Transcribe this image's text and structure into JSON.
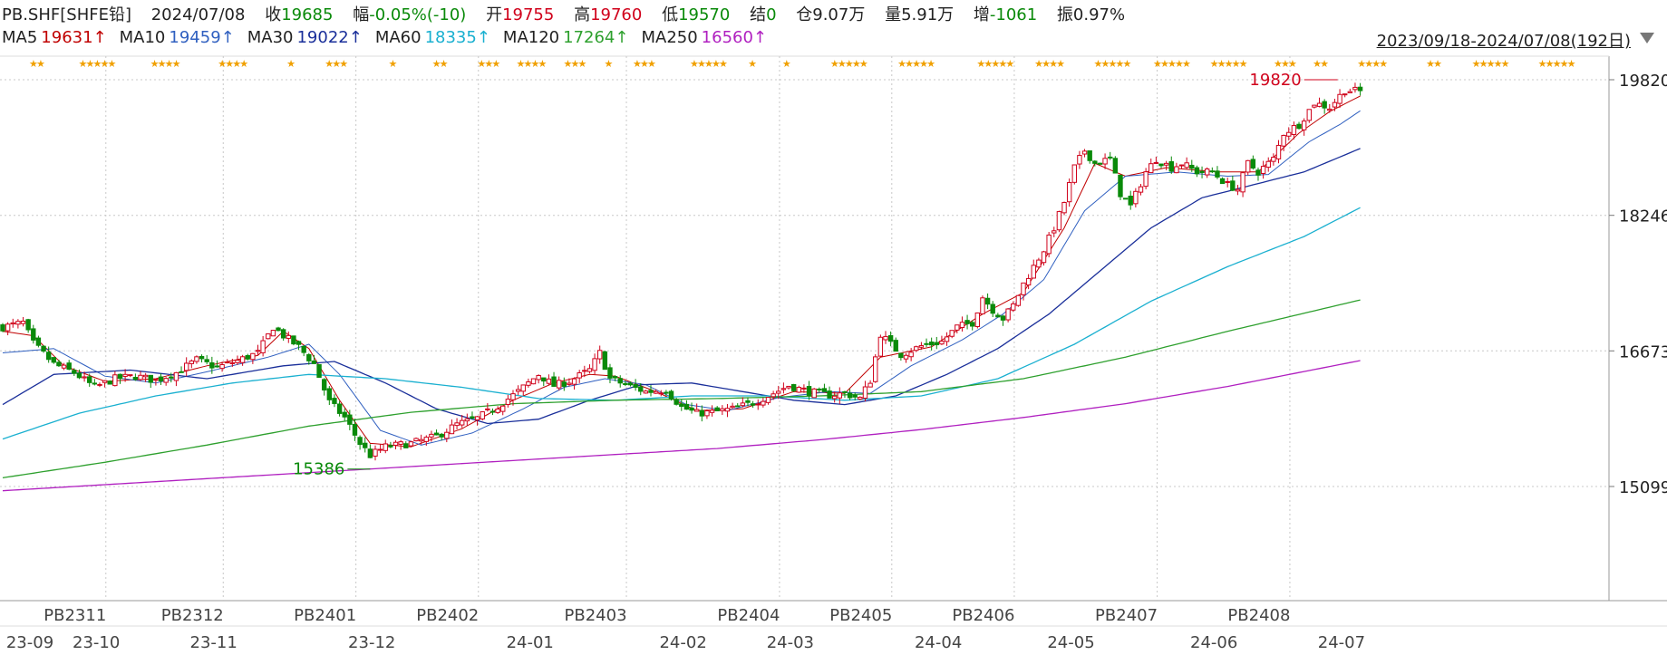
{
  "header": {
    "symbol": "PB.SHF[SHFE铅]",
    "date": "2024/07/08",
    "close_label": "收",
    "close_value": "19685",
    "change_label": "幅",
    "change_value": "-0.05%(-10)",
    "open_label": "开",
    "open_value": "19755",
    "high_label": "高",
    "high_value": "19760",
    "low_label": "低",
    "low_value": "19570",
    "settle_label": "结",
    "settle_value": "0",
    "oi_label": "仓",
    "oi_value": "9.07万",
    "volume_label": "量",
    "volume_value": "5.91万",
    "oi_change_label": "增",
    "oi_change_value": "-1061",
    "amplitude_label": "振",
    "amplitude_value": "0.97%"
  },
  "ma_row": [
    {
      "name": "MA5",
      "value": "19631↑",
      "color": "#c00000"
    },
    {
      "name": "MA10",
      "value": "19459↑",
      "color": "#3060c0"
    },
    {
      "name": "MA30",
      "value": "19022↑",
      "color": "#1a2f9a"
    },
    {
      "name": "MA60",
      "value": "18335↑",
      "color": "#1ab0d0"
    },
    {
      "name": "MA120",
      "value": "17264↑",
      "color": "#2ea02e"
    },
    {
      "name": "MA250",
      "value": "16560↑",
      "color": "#b020c0"
    }
  ],
  "date_range": "2023/09/18-2024/07/08(192日)",
  "colors": {
    "up": "#d0021b",
    "down": "#0a8a0a",
    "grid": "#c8c8c8",
    "star": "#f0a000"
  },
  "chart_data": {
    "type": "candlestick",
    "y_ticks": [
      "19820",
      "18246",
      "16673",
      "15099"
    ],
    "y_tick_values": [
      19820,
      18246,
      16673,
      15099
    ],
    "ylim": [
      14830,
      20100
    ],
    "period_labels": [
      "PB2311",
      "PB2312",
      "PB2401",
      "PB2402",
      "PB2403",
      "PB2404",
      "PB2405",
      "PB2406",
      "PB2407",
      "PB2408"
    ],
    "period_label_days": [
      6,
      29,
      55,
      79,
      108,
      138,
      160,
      184,
      212,
      238
    ],
    "date_labels": [
      "23-09",
      "23-10",
      "23-11",
      "23-12",
      "24-01",
      "24-02",
      "24-03",
      "24-04",
      "24-05",
      "24-06",
      "24-07"
    ],
    "date_label_days": [
      0,
      13,
      36,
      67,
      98,
      128,
      149,
      178,
      204,
      232,
      257
    ],
    "n_days": 270,
    "annotations": [
      {
        "text": "15386",
        "day": 72,
        "value": 15386
      },
      {
        "text": "19820",
        "day": 263,
        "value": 19820
      }
    ],
    "close_keypoints": [
      [
        0,
        16950
      ],
      [
        4,
        17000
      ],
      [
        6,
        16760
      ],
      [
        10,
        16520
      ],
      [
        14,
        16420
      ],
      [
        18,
        16250
      ],
      [
        22,
        16350
      ],
      [
        26,
        16380
      ],
      [
        30,
        16330
      ],
      [
        34,
        16420
      ],
      [
        38,
        16570
      ],
      [
        42,
        16480
      ],
      [
        46,
        16560
      ],
      [
        50,
        16650
      ],
      [
        53,
        16950
      ],
      [
        55,
        16850
      ],
      [
        58,
        16720
      ],
      [
        61,
        16520
      ],
      [
        64,
        16080
      ],
      [
        67,
        15900
      ],
      [
        70,
        15600
      ],
      [
        72,
        15460
      ],
      [
        75,
        15560
      ],
      [
        80,
        15600
      ],
      [
        85,
        15680
      ],
      [
        89,
        15820
      ],
      [
        93,
        15890
      ],
      [
        97,
        16030
      ],
      [
        101,
        16200
      ],
      [
        105,
        16400
      ],
      [
        108,
        16270
      ],
      [
        111,
        16320
      ],
      [
        115,
        16450
      ],
      [
        117,
        16650
      ],
      [
        119,
        16350
      ],
      [
        122,
        16280
      ],
      [
        126,
        16200
      ],
      [
        130,
        16220
      ],
      [
        133,
        16020
      ],
      [
        136,
        15950
      ],
      [
        139,
        15960
      ],
      [
        143,
        16000
      ],
      [
        147,
        16070
      ],
      [
        150,
        16150
      ],
      [
        154,
        16270
      ],
      [
        158,
        16200
      ],
      [
        162,
        16160
      ],
      [
        165,
        16180
      ],
      [
        168,
        16120
      ],
      [
        170,
        16330
      ],
      [
        172,
        16870
      ],
      [
        176,
        16630
      ],
      [
        180,
        16730
      ],
      [
        184,
        16780
      ],
      [
        187,
        16950
      ],
      [
        190,
        17000
      ],
      [
        192,
        17300
      ],
      [
        194,
        17150
      ],
      [
        196,
        17050
      ],
      [
        198,
        17200
      ],
      [
        200,
        17450
      ],
      [
        202,
        17650
      ],
      [
        204,
        17850
      ],
      [
        206,
        18100
      ],
      [
        208,
        18400
      ],
      [
        210,
        18800
      ],
      [
        212,
        19000
      ],
      [
        214,
        18850
      ],
      [
        217,
        18900
      ],
      [
        219,
        18500
      ],
      [
        221,
        18350
      ],
      [
        224,
        18750
      ],
      [
        226,
        18900
      ],
      [
        229,
        18800
      ],
      [
        231,
        18850
      ],
      [
        234,
        18750
      ],
      [
        237,
        18750
      ],
      [
        240,
        18600
      ],
      [
        242,
        18550
      ],
      [
        244,
        18850
      ],
      [
        246,
        18750
      ],
      [
        249,
        18900
      ],
      [
        251,
        19200
      ],
      [
        254,
        19300
      ],
      [
        257,
        19550
      ],
      [
        260,
        19500
      ],
      [
        263,
        19700
      ],
      [
        266,
        19685
      ]
    ],
    "ma_series": [
      {
        "name": "MA5",
        "color": "#c00000",
        "points": [
          [
            0,
            16900
          ],
          [
            6,
            16850
          ],
          [
            12,
            16500
          ],
          [
            20,
            16320
          ],
          [
            30,
            16350
          ],
          [
            40,
            16500
          ],
          [
            50,
            16620
          ],
          [
            55,
            16900
          ],
          [
            60,
            16700
          ],
          [
            66,
            16100
          ],
          [
            72,
            15600
          ],
          [
            80,
            15560
          ],
          [
            90,
            15770
          ],
          [
            100,
            16100
          ],
          [
            108,
            16300
          ],
          [
            115,
            16400
          ],
          [
            120,
            16380
          ],
          [
            128,
            16200
          ],
          [
            136,
            15980
          ],
          [
            145,
            16000
          ],
          [
            155,
            16200
          ],
          [
            165,
            16180
          ],
          [
            172,
            16600
          ],
          [
            182,
            16720
          ],
          [
            192,
            17100
          ],
          [
            200,
            17350
          ],
          [
            208,
            18100
          ],
          [
            214,
            18850
          ],
          [
            220,
            18700
          ],
          [
            228,
            18800
          ],
          [
            238,
            18750
          ],
          [
            246,
            18750
          ],
          [
            254,
            19200
          ],
          [
            260,
            19450
          ],
          [
            266,
            19631
          ]
        ]
      },
      {
        "name": "MA10",
        "color": "#3060c0",
        "points": [
          [
            0,
            16650
          ],
          [
            10,
            16700
          ],
          [
            20,
            16380
          ],
          [
            30,
            16300
          ],
          [
            40,
            16430
          ],
          [
            52,
            16600
          ],
          [
            60,
            16750
          ],
          [
            66,
            16400
          ],
          [
            74,
            15750
          ],
          [
            82,
            15580
          ],
          [
            92,
            15720
          ],
          [
            102,
            16000
          ],
          [
            110,
            16250
          ],
          [
            118,
            16350
          ],
          [
            126,
            16280
          ],
          [
            134,
            16050
          ],
          [
            142,
            15980
          ],
          [
            152,
            16130
          ],
          [
            162,
            16200
          ],
          [
            170,
            16180
          ],
          [
            178,
            16500
          ],
          [
            188,
            16800
          ],
          [
            196,
            17100
          ],
          [
            204,
            17500
          ],
          [
            212,
            18300
          ],
          [
            220,
            18700
          ],
          [
            230,
            18750
          ],
          [
            240,
            18700
          ],
          [
            248,
            18720
          ],
          [
            256,
            19100
          ],
          [
            262,
            19300
          ],
          [
            266,
            19459
          ]
        ]
      },
      {
        "name": "MA30",
        "color": "#1a2f9a",
        "points": [
          [
            0,
            16050
          ],
          [
            10,
            16400
          ],
          [
            25,
            16450
          ],
          [
            40,
            16350
          ],
          [
            55,
            16500
          ],
          [
            65,
            16550
          ],
          [
            75,
            16300
          ],
          [
            85,
            16000
          ],
          [
            95,
            15830
          ],
          [
            105,
            15880
          ],
          [
            115,
            16100
          ],
          [
            125,
            16280
          ],
          [
            135,
            16300
          ],
          [
            145,
            16200
          ],
          [
            155,
            16100
          ],
          [
            165,
            16050
          ],
          [
            175,
            16150
          ],
          [
            185,
            16400
          ],
          [
            195,
            16700
          ],
          [
            205,
            17100
          ],
          [
            215,
            17600
          ],
          [
            225,
            18100
          ],
          [
            235,
            18450
          ],
          [
            245,
            18600
          ],
          [
            255,
            18750
          ],
          [
            266,
            19022
          ]
        ]
      },
      {
        "name": "MA60",
        "color": "#1ab0d0",
        "points": [
          [
            0,
            15650
          ],
          [
            15,
            15950
          ],
          [
            30,
            16150
          ],
          [
            45,
            16300
          ],
          [
            60,
            16400
          ],
          [
            75,
            16350
          ],
          [
            90,
            16250
          ],
          [
            105,
            16120
          ],
          [
            120,
            16100
          ],
          [
            135,
            16150
          ],
          [
            150,
            16150
          ],
          [
            165,
            16100
          ],
          [
            180,
            16150
          ],
          [
            195,
            16350
          ],
          [
            210,
            16750
          ],
          [
            225,
            17250
          ],
          [
            240,
            17650
          ],
          [
            255,
            18000
          ],
          [
            266,
            18335
          ]
        ]
      },
      {
        "name": "MA120",
        "color": "#2ea02e",
        "points": [
          [
            0,
            15200
          ],
          [
            20,
            15380
          ],
          [
            40,
            15580
          ],
          [
            60,
            15800
          ],
          [
            80,
            15960
          ],
          [
            100,
            16060
          ],
          [
            120,
            16100
          ],
          [
            140,
            16120
          ],
          [
            160,
            16150
          ],
          [
            180,
            16200
          ],
          [
            200,
            16350
          ],
          [
            220,
            16600
          ],
          [
            240,
            16900
          ],
          [
            266,
            17264
          ]
        ]
      },
      {
        "name": "MA250",
        "color": "#b020c0",
        "points": [
          [
            0,
            15050
          ],
          [
            20,
            15120
          ],
          [
            40,
            15190
          ],
          [
            60,
            15260
          ],
          [
            80,
            15330
          ],
          [
            100,
            15400
          ],
          [
            120,
            15470
          ],
          [
            140,
            15540
          ],
          [
            160,
            15640
          ],
          [
            180,
            15760
          ],
          [
            200,
            15900
          ],
          [
            220,
            16060
          ],
          [
            240,
            16260
          ],
          [
            266,
            16560
          ]
        ]
      }
    ]
  }
}
